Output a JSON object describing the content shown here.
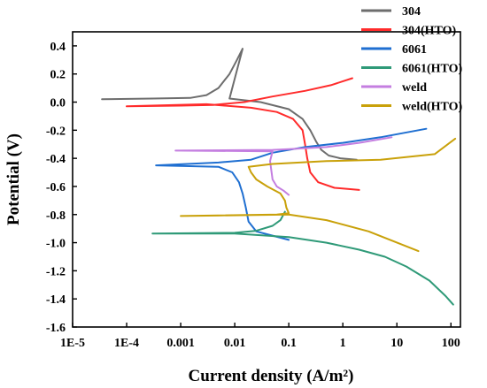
{
  "chart_data": {
    "type": "line",
    "title": "",
    "xlabel": "Current density (A/m²)",
    "ylabel": "Potential (V)",
    "xscale": "log",
    "xlim": [
      1e-05,
      150
    ],
    "ylim": [
      -1.6,
      0.5
    ],
    "xticks": [
      1e-05,
      0.0001,
      0.001,
      0.01,
      0.1,
      1,
      10,
      100
    ],
    "xtick_labels": [
      "1E-5",
      "1E-4",
      "0.001",
      "0.01",
      "0.1",
      "1",
      "10",
      "100"
    ],
    "yticks": [
      0.4,
      0.2,
      0.0,
      -0.2,
      -0.4,
      -0.6,
      -0.8,
      -1.0,
      -1.2,
      -1.4,
      -1.6
    ],
    "ytick_labels": [
      "0.4",
      "0.2",
      "0.0",
      "-0.2",
      "-0.4",
      "-0.6",
      "-0.8",
      "-1.0",
      "-1.2",
      "-1.4",
      "-1.6"
    ],
    "grid": false,
    "legend": "top-right, outside plot",
    "series": [
      {
        "name": "304",
        "color": "#6d6d6d",
        "points": [
          [
            3.5e-05,
            0.02
          ],
          [
            0.0003,
            0.025
          ],
          [
            0.0015,
            0.03
          ],
          [
            0.003,
            0.05
          ],
          [
            0.005,
            0.1
          ],
          [
            0.008,
            0.2
          ],
          [
            0.011,
            0.3
          ],
          [
            0.014,
            0.38
          ],
          [
            0.008,
            0.025
          ],
          [
            0.03,
            0.0
          ],
          [
            0.1,
            -0.05
          ],
          [
            0.18,
            -0.12
          ],
          [
            0.25,
            -0.2
          ],
          [
            0.32,
            -0.28
          ],
          [
            0.4,
            -0.34
          ],
          [
            0.55,
            -0.38
          ],
          [
            0.9,
            -0.4
          ],
          [
            1.8,
            -0.41
          ]
        ]
      },
      {
        "name": "304(HTO)",
        "color": "#ff2b2b",
        "points": [
          [
            1.5,
            0.17
          ],
          [
            0.6,
            0.12
          ],
          [
            0.2,
            0.08
          ],
          [
            0.05,
            0.04
          ],
          [
            0.015,
            0.0
          ],
          [
            0.004,
            -0.02
          ],
          [
            0.001,
            -0.025
          ],
          [
            0.0001,
            -0.03
          ],
          [
            0.003,
            -0.015
          ],
          [
            0.02,
            -0.04
          ],
          [
            0.06,
            -0.07
          ],
          [
            0.12,
            -0.12
          ],
          [
            0.18,
            -0.2
          ],
          [
            0.2,
            -0.3
          ],
          [
            0.22,
            -0.4
          ],
          [
            0.25,
            -0.5
          ],
          [
            0.35,
            -0.57
          ],
          [
            0.7,
            -0.61
          ],
          [
            2,
            -0.625
          ]
        ]
      },
      {
        "name": "6061",
        "color": "#1f6fd1",
        "points": [
          [
            35,
            -0.19
          ],
          [
            5,
            -0.25
          ],
          [
            1,
            -0.29
          ],
          [
            0.2,
            -0.32
          ],
          [
            0.05,
            -0.36
          ],
          [
            0.02,
            -0.41
          ],
          [
            0.005,
            -0.43
          ],
          [
            0.00035,
            -0.45
          ],
          [
            0.005,
            -0.46
          ],
          [
            0.009,
            -0.5
          ],
          [
            0.012,
            -0.57
          ],
          [
            0.014,
            -0.65
          ],
          [
            0.016,
            -0.75
          ],
          [
            0.018,
            -0.85
          ],
          [
            0.025,
            -0.92
          ],
          [
            0.05,
            -0.95
          ],
          [
            0.1,
            -0.98
          ]
        ]
      },
      {
        "name": "6061(HTO)",
        "color": "#2f9a78",
        "points": [
          [
            0.085,
            -0.78
          ],
          [
            0.07,
            -0.84
          ],
          [
            0.05,
            -0.88
          ],
          [
            0.025,
            -0.915
          ],
          [
            0.01,
            -0.93
          ],
          [
            0.0003,
            -0.935
          ],
          [
            0.01,
            -0.935
          ],
          [
            0.1,
            -0.96
          ],
          [
            0.5,
            -1.0
          ],
          [
            2,
            -1.05
          ],
          [
            6,
            -1.1
          ],
          [
            15,
            -1.17
          ],
          [
            40,
            -1.27
          ],
          [
            80,
            -1.38
          ],
          [
            110,
            -1.44
          ]
        ]
      },
      {
        "name": "weld",
        "color": "#c47ee0",
        "points": [
          [
            8,
            -0.25
          ],
          [
            2,
            -0.29
          ],
          [
            0.5,
            -0.32
          ],
          [
            0.1,
            -0.335
          ],
          [
            0.05,
            -0.34
          ],
          [
            0.0008,
            -0.345
          ],
          [
            0.05,
            -0.35
          ],
          [
            0.045,
            -0.42
          ],
          [
            0.05,
            -0.55
          ],
          [
            0.06,
            -0.6
          ],
          [
            0.08,
            -0.63
          ],
          [
            0.1,
            -0.66
          ]
        ]
      },
      {
        "name": "weld(HTO)",
        "color": "#c9a10a",
        "points": [
          [
            120,
            -0.26
          ],
          [
            50,
            -0.37
          ],
          [
            5,
            -0.41
          ],
          [
            0.5,
            -0.42
          ],
          [
            0.05,
            -0.44
          ],
          [
            0.018,
            -0.46
          ],
          [
            0.02,
            -0.5
          ],
          [
            0.025,
            -0.55
          ],
          [
            0.04,
            -0.6
          ],
          [
            0.07,
            -0.65
          ],
          [
            0.085,
            -0.7
          ],
          [
            0.09,
            -0.75
          ],
          [
            0.1,
            -0.79
          ],
          [
            0.06,
            -0.8
          ],
          [
            0.001,
            -0.81
          ],
          [
            0.1,
            -0.8
          ],
          [
            0.5,
            -0.84
          ],
          [
            3,
            -0.92
          ],
          [
            25,
            -1.06
          ]
        ]
      }
    ]
  }
}
